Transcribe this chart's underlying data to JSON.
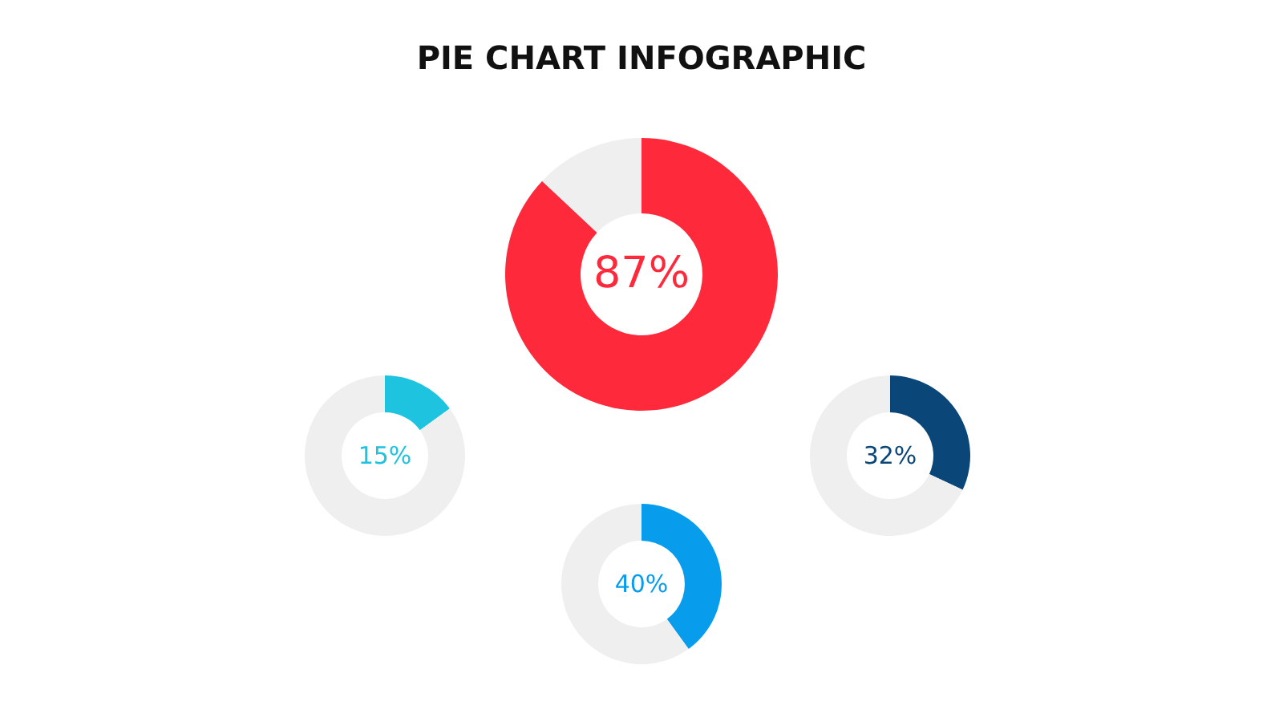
{
  "chart_data": [
    {
      "type": "donut",
      "title": "PIE CHART INFOGRAPHIC",
      "categories": [
        null,
        null
      ],
      "values": [
        87,
        13
      ],
      "colors": [
        "#fe2a3b",
        "#efefef"
      ],
      "value_labels": [
        "87%",
        null
      ]
    },
    {
      "type": "donut",
      "categories": [
        null,
        null
      ],
      "values": [
        15,
        85
      ],
      "colors": [
        "#1dc3df",
        "#efefef"
      ],
      "value_labels": [
        "15%",
        null
      ]
    },
    {
      "type": "donut",
      "categories": [
        null,
        null
      ],
      "values": [
        40,
        60
      ],
      "colors": [
        "#089ced",
        "#efefef"
      ],
      "value_labels": [
        "40%",
        null
      ]
    },
    {
      "type": "donut",
      "categories": [
        null,
        null
      ],
      "values": [
        32,
        68
      ],
      "colors": [
        "#0a4678",
        "#efefef"
      ],
      "value_labels": [
        "32%",
        null
      ]
    }
  ]
}
